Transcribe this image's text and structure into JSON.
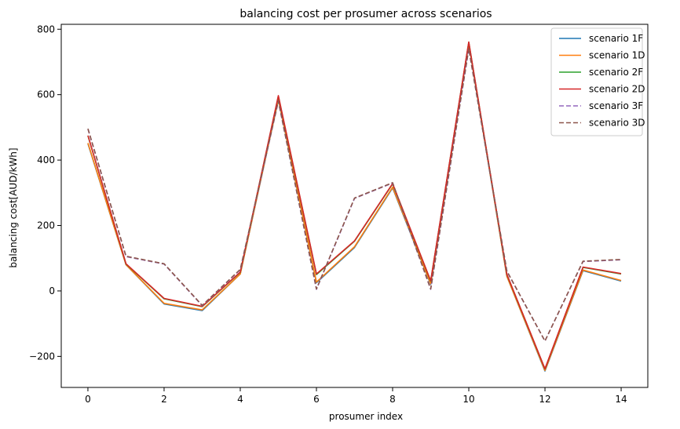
{
  "chart_data": {
    "type": "line",
    "title": "balancing cost per prosumer across scenarios",
    "xlabel": "prosumer index",
    "ylabel": "balancing cost[AUD/kWh]",
    "xlim": [
      -0.7,
      14.7
    ],
    "ylim": [
      -295,
      815
    ],
    "xticks": [
      0,
      2,
      4,
      6,
      8,
      10,
      12,
      14
    ],
    "yticks": [
      -200,
      0,
      200,
      400,
      600,
      800
    ],
    "ytick_labels": [
      "−200",
      "0",
      "200",
      "400",
      "600",
      "800"
    ],
    "grid": false,
    "legend_position": "top-right",
    "x": [
      0,
      1,
      2,
      3,
      4,
      5,
      6,
      7,
      8,
      9,
      10,
      11,
      12,
      13,
      14
    ],
    "series": [
      {
        "name": "scenario 1F",
        "color": "#1f77b4",
        "dashed": false,
        "values": [
          450,
          80,
          -40,
          -60,
          52,
          585,
          25,
          133,
          315,
          20,
          755,
          45,
          -245,
          62,
          30
        ]
      },
      {
        "name": "scenario 1D",
        "color": "#ff7f0e",
        "dashed": false,
        "values": [
          452,
          80,
          -38,
          -58,
          52,
          587,
          27,
          135,
          317,
          22,
          757,
          45,
          -243,
          64,
          32
        ]
      },
      {
        "name": "scenario 2F",
        "color": "#2ca02c",
        "dashed": false,
        "values": [
          474,
          82,
          -24,
          -48,
          57,
          595,
          50,
          152,
          327,
          30,
          760,
          50,
          -239,
          72,
          52
        ]
      },
      {
        "name": "scenario 2D",
        "color": "#d62728",
        "dashed": false,
        "values": [
          475,
          83,
          -23,
          -47,
          58,
          597,
          52,
          153,
          328,
          31,
          761,
          51,
          -238,
          73,
          53
        ]
      },
      {
        "name": "scenario 3F",
        "color": "#9467bd",
        "dashed": true,
        "values": [
          495,
          105,
          82,
          -45,
          65,
          580,
          5,
          283,
          330,
          5,
          740,
          60,
          -153,
          90,
          95
        ]
      },
      {
        "name": "scenario 3D",
        "color": "#8c564b",
        "dashed": true,
        "values": [
          496,
          106,
          83,
          -44,
          66,
          581,
          6,
          284,
          331,
          6,
          741,
          61,
          -153,
          91,
          96
        ]
      }
    ]
  }
}
